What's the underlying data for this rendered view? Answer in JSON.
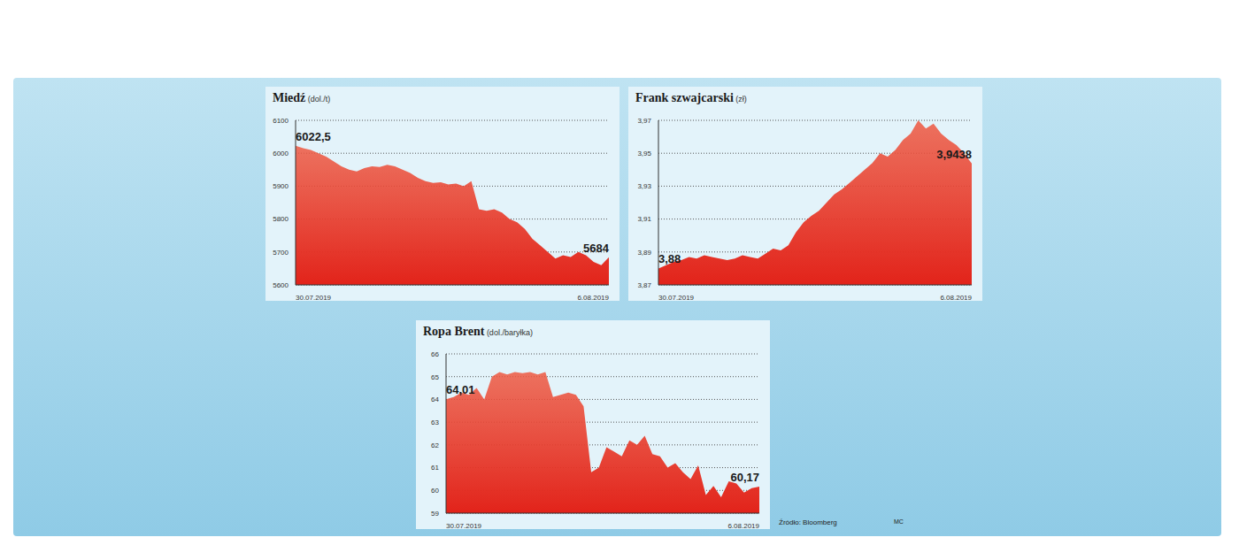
{
  "chart_data": [
    {
      "type": "area",
      "title": "Miedź",
      "subtitle": "(dol./t)",
      "color": "#ee5a43",
      "grid": true,
      "categories": [
        "30.07.2019",
        null,
        null,
        null,
        null,
        null,
        null,
        null,
        null,
        null,
        null,
        null,
        null,
        null,
        null,
        null,
        null,
        null,
        null,
        null,
        null,
        null,
        null,
        null,
        null,
        null,
        null,
        null,
        null,
        null,
        null,
        null,
        null,
        null,
        null,
        null,
        null,
        null,
        null,
        null,
        null,
        "6.08.2019"
      ],
      "values": [
        6022.5,
        6015,
        6010,
        6000,
        5990,
        5975,
        5960,
        5950,
        5945,
        5955,
        5960,
        5958,
        5965,
        5960,
        5950,
        5940,
        5925,
        5915,
        5910,
        5912,
        5905,
        5908,
        5900,
        5915,
        5830,
        5825,
        5830,
        5820,
        5800,
        5790,
        5770,
        5740,
        5720,
        5700,
        5680,
        5690,
        5685,
        5700,
        5690,
        5670,
        5660,
        5684
      ],
      "value_labels": [
        "6022,5",
        null,
        null,
        null,
        null,
        null,
        null,
        null,
        null,
        null,
        null,
        null,
        null,
        null,
        null,
        null,
        null,
        null,
        null,
        null,
        null,
        null,
        null,
        null,
        null,
        null,
        null,
        null,
        null,
        null,
        null,
        null,
        null,
        null,
        null,
        null,
        null,
        null,
        null,
        null,
        null,
        "5684"
      ],
      "ylim": [
        5600,
        6100
      ],
      "yticks": [
        5600,
        5700,
        5800,
        5900,
        6000,
        6100
      ]
    },
    {
      "type": "area",
      "title": "Frank szwajcarski",
      "subtitle": "(zł)",
      "color": "#ee5a43",
      "grid": true,
      "categories": [
        "30.07.2019",
        null,
        null,
        null,
        null,
        null,
        null,
        null,
        null,
        null,
        null,
        null,
        null,
        null,
        null,
        null,
        null,
        null,
        null,
        null,
        null,
        null,
        null,
        null,
        null,
        null,
        null,
        null,
        null,
        null,
        null,
        null,
        null,
        null,
        null,
        null,
        null,
        null,
        null,
        null,
        null,
        "6.08.2019"
      ],
      "values": [
        3.88,
        3.882,
        3.884,
        3.885,
        3.887,
        3.886,
        3.888,
        3.887,
        3.886,
        3.885,
        3.886,
        3.888,
        3.887,
        3.886,
        3.889,
        3.892,
        3.891,
        3.894,
        3.902,
        3.908,
        3.912,
        3.915,
        3.92,
        3.925,
        3.928,
        3.932,
        3.936,
        3.94,
        3.944,
        3.95,
        3.948,
        3.952,
        3.958,
        3.962,
        3.97,
        3.965,
        3.968,
        3.962,
        3.958,
        3.955,
        3.95,
        3.9438
      ],
      "value_labels": [
        "3,88",
        null,
        null,
        null,
        null,
        null,
        null,
        null,
        null,
        null,
        null,
        null,
        null,
        null,
        null,
        null,
        null,
        null,
        null,
        null,
        null,
        null,
        null,
        null,
        null,
        null,
        null,
        null,
        null,
        null,
        null,
        null,
        null,
        null,
        null,
        null,
        null,
        null,
        null,
        null,
        null,
        "3,9438"
      ],
      "ylim": [
        3.87,
        3.97
      ],
      "yticks": [
        {
          "value": 3.87,
          "label": "3,87"
        },
        {
          "value": 3.89,
          "label": "3,89"
        },
        {
          "value": 3.91,
          "label": "3,91"
        },
        {
          "value": 3.93,
          "label": "3,93"
        },
        {
          "value": 3.95,
          "label": "3,95"
        },
        {
          "value": 3.97,
          "label": "3,97"
        }
      ]
    },
    {
      "type": "area",
      "title": "Ropa Brent",
      "subtitle": "(dol./baryłka)",
      "color": "#ee5a43",
      "grid": true,
      "categories": [
        "30.07.2019",
        null,
        null,
        null,
        null,
        null,
        null,
        null,
        null,
        null,
        null,
        null,
        null,
        null,
        null,
        null,
        null,
        null,
        null,
        null,
        null,
        null,
        null,
        null,
        null,
        null,
        null,
        null,
        null,
        null,
        null,
        null,
        null,
        null,
        null,
        null,
        null,
        null,
        null,
        null,
        null,
        "6.08.2019"
      ],
      "values": [
        64.01,
        64.1,
        64.3,
        64.2,
        64.5,
        64.0,
        65.0,
        65.2,
        65.1,
        65.2,
        65.15,
        65.2,
        65.1,
        65.2,
        64.1,
        64.2,
        64.3,
        64.2,
        63.7,
        60.8,
        61.0,
        61.9,
        61.7,
        61.5,
        62.2,
        62.0,
        62.4,
        61.6,
        61.5,
        61.0,
        61.2,
        60.8,
        60.5,
        61.1,
        59.8,
        60.2,
        59.7,
        60.4,
        60.3,
        59.9,
        60.1,
        60.17
      ],
      "value_labels": [
        "64,01",
        null,
        null,
        null,
        null,
        null,
        null,
        null,
        null,
        null,
        null,
        null,
        null,
        null,
        null,
        null,
        null,
        null,
        null,
        null,
        null,
        null,
        null,
        null,
        null,
        null,
        null,
        null,
        null,
        null,
        null,
        null,
        null,
        null,
        null,
        null,
        null,
        null,
        null,
        null,
        null,
        "60,17"
      ],
      "ylim": [
        59,
        66
      ],
      "yticks": [
        59,
        60,
        61,
        62,
        63,
        64,
        65,
        66
      ]
    }
  ],
  "source": "Źródło: Bloomberg",
  "author": "MC"
}
